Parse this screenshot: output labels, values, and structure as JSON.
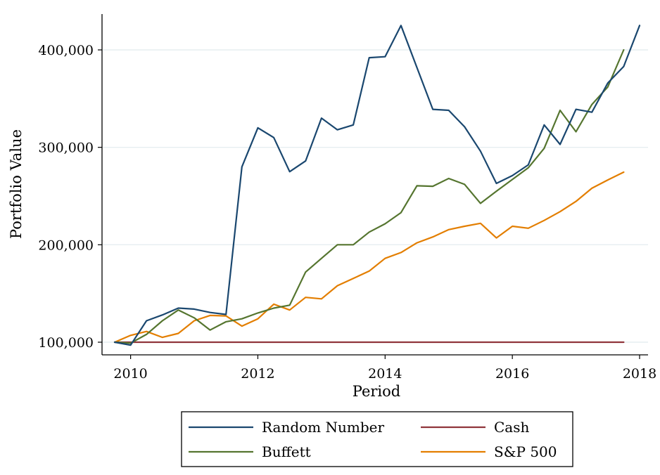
{
  "chart_data": {
    "type": "line",
    "title": "",
    "xlabel": "Period",
    "ylabel": "Portfolio Value",
    "xlim": [
      2009.75,
      2018.08
    ],
    "ylim": [
      92000,
      432000
    ],
    "xticks": [
      2010,
      2012,
      2014,
      2016,
      2018
    ],
    "xtick_labels": [
      "2010",
      "2012",
      "2014",
      "2016",
      "2018"
    ],
    "yticks": [
      100000,
      200000,
      300000,
      400000
    ],
    "ytick_labels": [
      "100,000",
      "200,000",
      "300,000",
      "400,000"
    ],
    "grid": "horizontal",
    "legend_position": "bottom",
    "x": [
      2009.75,
      2010.0,
      2010.25,
      2010.5,
      2010.75,
      2011.0,
      2011.25,
      2011.5,
      2011.75,
      2012.0,
      2012.25,
      2012.5,
      2012.75,
      2013.0,
      2013.25,
      2013.5,
      2013.75,
      2014.0,
      2014.25,
      2014.5,
      2014.75,
      2015.0,
      2015.25,
      2015.5,
      2015.75,
      2016.0,
      2016.25,
      2016.5,
      2016.75,
      2017.0,
      2017.25,
      2017.5,
      2017.75,
      2018.0
    ],
    "series": [
      {
        "name": "Random Number",
        "color": "#1a476f",
        "values": [
          100000,
          97000,
          122000,
          128000,
          135000,
          134000,
          130500,
          128500,
          280000,
          320000,
          310000,
          275000,
          286000,
          330000,
          318000,
          323000,
          392000,
          393000,
          425000,
          382000,
          339000,
          338000,
          321000,
          296000,
          263000,
          271000,
          282000,
          323000,
          303000,
          339000,
          336000,
          366000,
          383000,
          425000
        ]
      },
      {
        "name": "Cash",
        "color": "#90353b",
        "values": [
          100000,
          100000,
          100000,
          100000,
          100000,
          100000,
          100000,
          100000,
          100000,
          100000,
          100000,
          100000,
          100000,
          100000,
          100000,
          100000,
          100000,
          100000,
          100000,
          100000,
          100000,
          100000,
          100000,
          100000,
          100000,
          100000,
          100000,
          100000,
          100000,
          100000,
          100000,
          100000,
          100000,
          null
        ]
      },
      {
        "name": "Buffett",
        "color": "#55752f",
        "values": [
          100000,
          99000,
          108000,
          122000,
          133000,
          125000,
          112500,
          121000,
          124000,
          130000,
          135000,
          138000,
          172000,
          186000,
          200000,
          200000,
          213000,
          221500,
          233000,
          260500,
          260000,
          268000,
          262000,
          242500,
          255000,
          267000,
          279000,
          299000,
          338000,
          316000,
          344000,
          362000,
          400000,
          null
        ]
      },
      {
        "name": "S&P 500",
        "color": "#e37e00",
        "values": [
          100000,
          107000,
          111000,
          105000,
          109000,
          122000,
          127500,
          127000,
          116500,
          124000,
          139000,
          133000,
          146000,
          144500,
          158000,
          165500,
          173000,
          186000,
          192000,
          202000,
          208000,
          215500,
          219000,
          222000,
          207000,
          219000,
          217000,
          225000,
          234000,
          244500,
          258000,
          266500,
          274500,
          null
        ]
      }
    ],
    "legend": [
      {
        "name": "Random Number",
        "color": "#1a476f"
      },
      {
        "name": "Cash",
        "color": "#90353b"
      },
      {
        "name": "Buffett",
        "color": "#55752f"
      },
      {
        "name": "S&P 500",
        "color": "#e37e00"
      }
    ]
  }
}
